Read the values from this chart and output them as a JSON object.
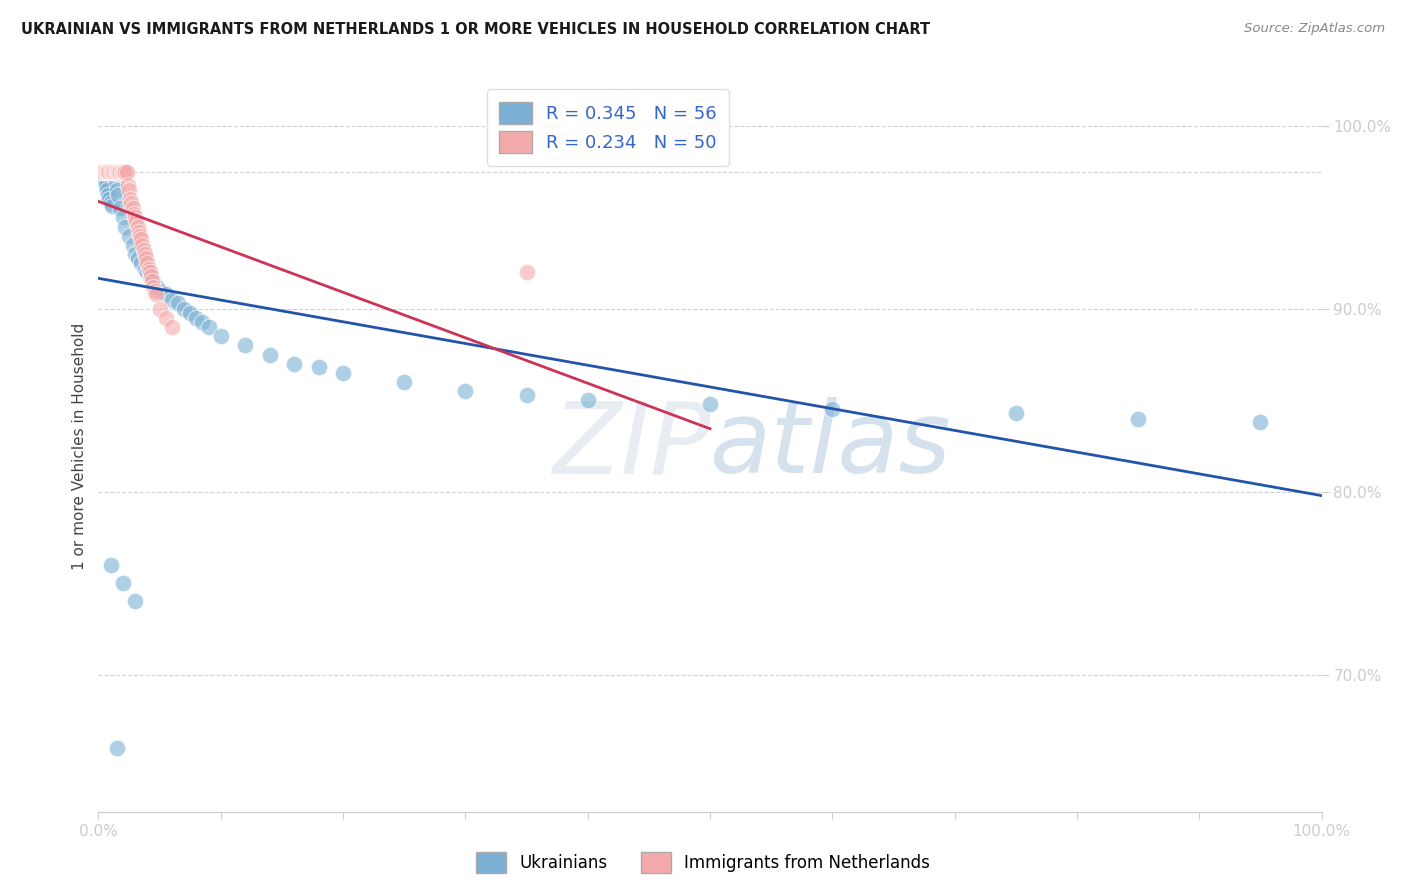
{
  "title": "UKRAINIAN VS IMMIGRANTS FROM NETHERLANDS 1 OR MORE VEHICLES IN HOUSEHOLD CORRELATION CHART",
  "source": "Source: ZipAtlas.com",
  "ylabel_label": "1 or more Vehicles in Household",
  "xlim": [
    0.0,
    1.0
  ],
  "ylim": [
    0.625,
    1.025
  ],
  "watermark_zip": "ZIP",
  "watermark_atlas": "atlas",
  "legend_blue_r": 0.345,
  "legend_blue_n": 56,
  "legend_pink_r": 0.234,
  "legend_pink_n": 50,
  "blue_color": "#7BAFD4",
  "pink_color": "#F4AAAA",
  "blue_line_color": "#2255AA",
  "pink_line_color": "#CC3355",
  "grid_color": "#CCCCCC",
  "background_color": "#FFFFFF",
  "title_color": "#1A1A1A",
  "source_color": "#888888",
  "legend_text_color": "#3366CC",
  "tick_color": "#3366CC",
  "ylabel_color": "#444444",
  "yticks": [
    0.7,
    0.8,
    0.9,
    1.0
  ],
  "ytick_labels": [
    "70.0%",
    "80.0%",
    "90.0%",
    "100.0%"
  ],
  "blue_x": [
    0.002,
    0.003,
    0.004,
    0.005,
    0.006,
    0.007,
    0.008,
    0.009,
    0.01,
    0.011,
    0.012,
    0.013,
    0.014,
    0.015,
    0.016,
    0.018,
    0.02,
    0.022,
    0.025,
    0.028,
    0.03,
    0.032,
    0.035,
    0.038,
    0.04,
    0.042,
    0.045,
    0.048,
    0.05,
    0.055,
    0.06,
    0.065,
    0.07,
    0.075,
    0.08,
    0.085,
    0.09,
    0.1,
    0.12,
    0.14,
    0.16,
    0.18,
    0.2,
    0.25,
    0.3,
    0.35,
    0.4,
    0.5,
    0.6,
    0.75,
    0.85,
    0.95,
    0.01,
    0.02,
    0.03,
    0.015
  ],
  "blue_y": [
    0.975,
    0.975,
    0.972,
    0.97,
    0.968,
    0.965,
    0.962,
    0.96,
    0.958,
    0.956,
    0.975,
    0.975,
    0.97,
    0.965,
    0.962,
    0.955,
    0.95,
    0.945,
    0.94,
    0.935,
    0.93,
    0.928,
    0.925,
    0.922,
    0.92,
    0.918,
    0.915,
    0.912,
    0.91,
    0.908,
    0.905,
    0.903,
    0.9,
    0.898,
    0.895,
    0.893,
    0.89,
    0.885,
    0.88,
    0.875,
    0.87,
    0.868,
    0.865,
    0.86,
    0.855,
    0.853,
    0.85,
    0.848,
    0.845,
    0.843,
    0.84,
    0.838,
    0.76,
    0.75,
    0.74,
    0.66
  ],
  "pink_x": [
    0.002,
    0.003,
    0.004,
    0.005,
    0.006,
    0.007,
    0.008,
    0.009,
    0.01,
    0.011,
    0.012,
    0.013,
    0.014,
    0.015,
    0.016,
    0.017,
    0.018,
    0.019,
    0.02,
    0.021,
    0.022,
    0.023,
    0.024,
    0.025,
    0.026,
    0.027,
    0.028,
    0.029,
    0.03,
    0.031,
    0.032,
    0.033,
    0.034,
    0.035,
    0.036,
    0.037,
    0.038,
    0.039,
    0.04,
    0.041,
    0.042,
    0.043,
    0.044,
    0.045,
    0.046,
    0.047,
    0.05,
    0.055,
    0.06,
    0.35
  ],
  "pink_y": [
    0.975,
    0.975,
    0.975,
    0.975,
    0.975,
    0.975,
    0.975,
    0.975,
    0.975,
    0.975,
    0.975,
    0.975,
    0.975,
    0.975,
    0.975,
    0.975,
    0.975,
    0.975,
    0.975,
    0.975,
    0.975,
    0.975,
    0.968,
    0.965,
    0.96,
    0.958,
    0.955,
    0.952,
    0.95,
    0.948,
    0.945,
    0.942,
    0.94,
    0.938,
    0.935,
    0.932,
    0.93,
    0.928,
    0.925,
    0.922,
    0.92,
    0.918,
    0.915,
    0.912,
    0.91,
    0.908,
    0.9,
    0.895,
    0.89,
    0.92
  ]
}
